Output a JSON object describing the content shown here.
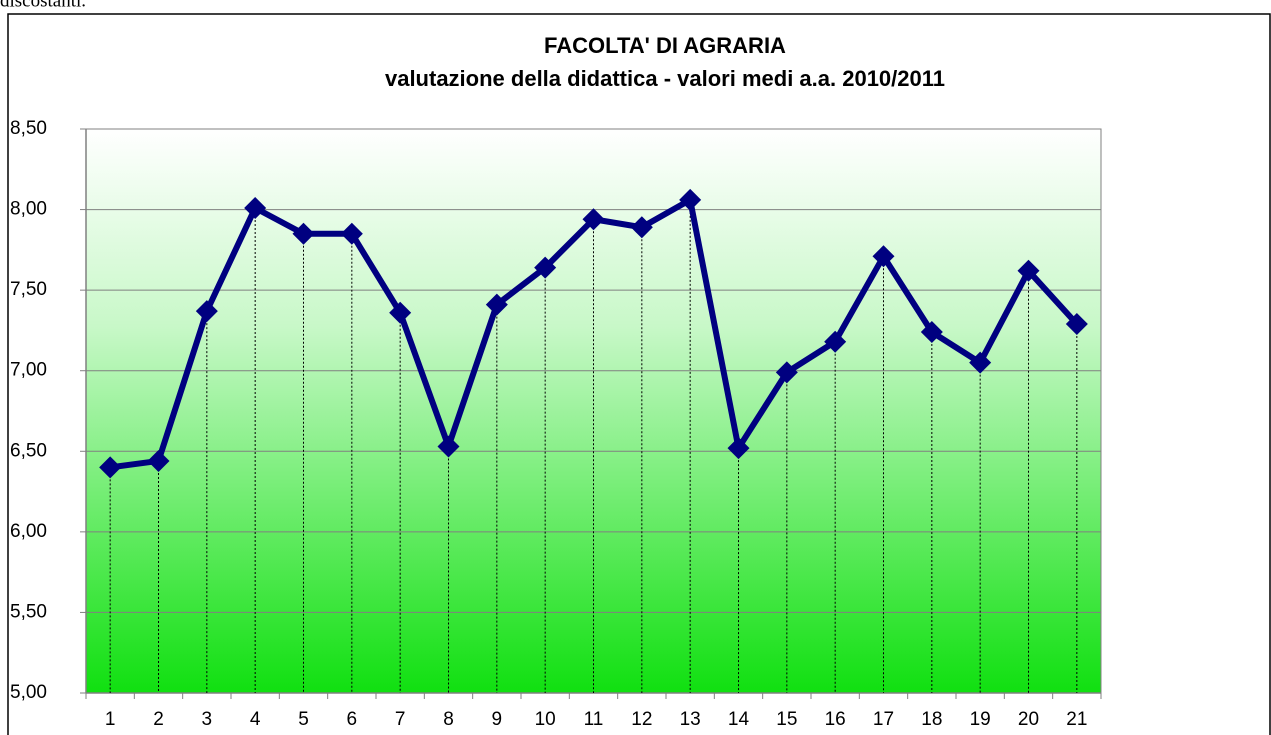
{
  "text_above": "discostanti.",
  "chart_data": {
    "type": "line",
    "title": "FACOLTA' DI AGRARIA",
    "subtitle": "valutazione della didattica - valori medi a.a. 2010/2011",
    "categories": [
      "1",
      "2",
      "3",
      "4",
      "5",
      "6",
      "7",
      "8",
      "9",
      "10",
      "11",
      "12",
      "13",
      "14",
      "15",
      "16",
      "17",
      "18",
      "19",
      "20",
      "21"
    ],
    "series": [
      {
        "name": null,
        "color": "#000080",
        "values": [
          6.4,
          6.44,
          7.37,
          8.01,
          7.85,
          7.85,
          7.36,
          6.53,
          7.41,
          7.64,
          7.94,
          7.89,
          8.06,
          6.52,
          6.99,
          7.18,
          7.71,
          7.24,
          7.05,
          7.62,
          7.29
        ]
      }
    ],
    "ylim": [
      5,
      8.5
    ],
    "yticks": [
      {
        "value": 5,
        "label": "5,00"
      },
      {
        "value": 5.5,
        "label": "5,50"
      },
      {
        "value": 6,
        "label": "6,00"
      },
      {
        "value": 6.5,
        "label": "6,50"
      },
      {
        "value": 7,
        "label": "7,00"
      },
      {
        "value": 7.5,
        "label": "7,50"
      },
      {
        "value": 8,
        "label": "8,00"
      },
      {
        "value": 8.5,
        "label": "8,50"
      }
    ],
    "grid": true,
    "drop_lines": true
  }
}
